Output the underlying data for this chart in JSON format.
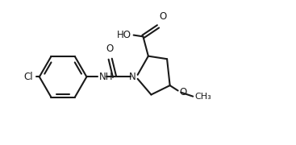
{
  "bg_color": "#ffffff",
  "line_color": "#1a1a1a",
  "text_color": "#1a1a1a",
  "line_width": 1.5,
  "font_size": 8.5,
  "fig_width": 3.67,
  "fig_height": 1.8,
  "dpi": 100,
  "xlim": [
    0,
    10
  ],
  "ylim": [
    0,
    5
  ]
}
